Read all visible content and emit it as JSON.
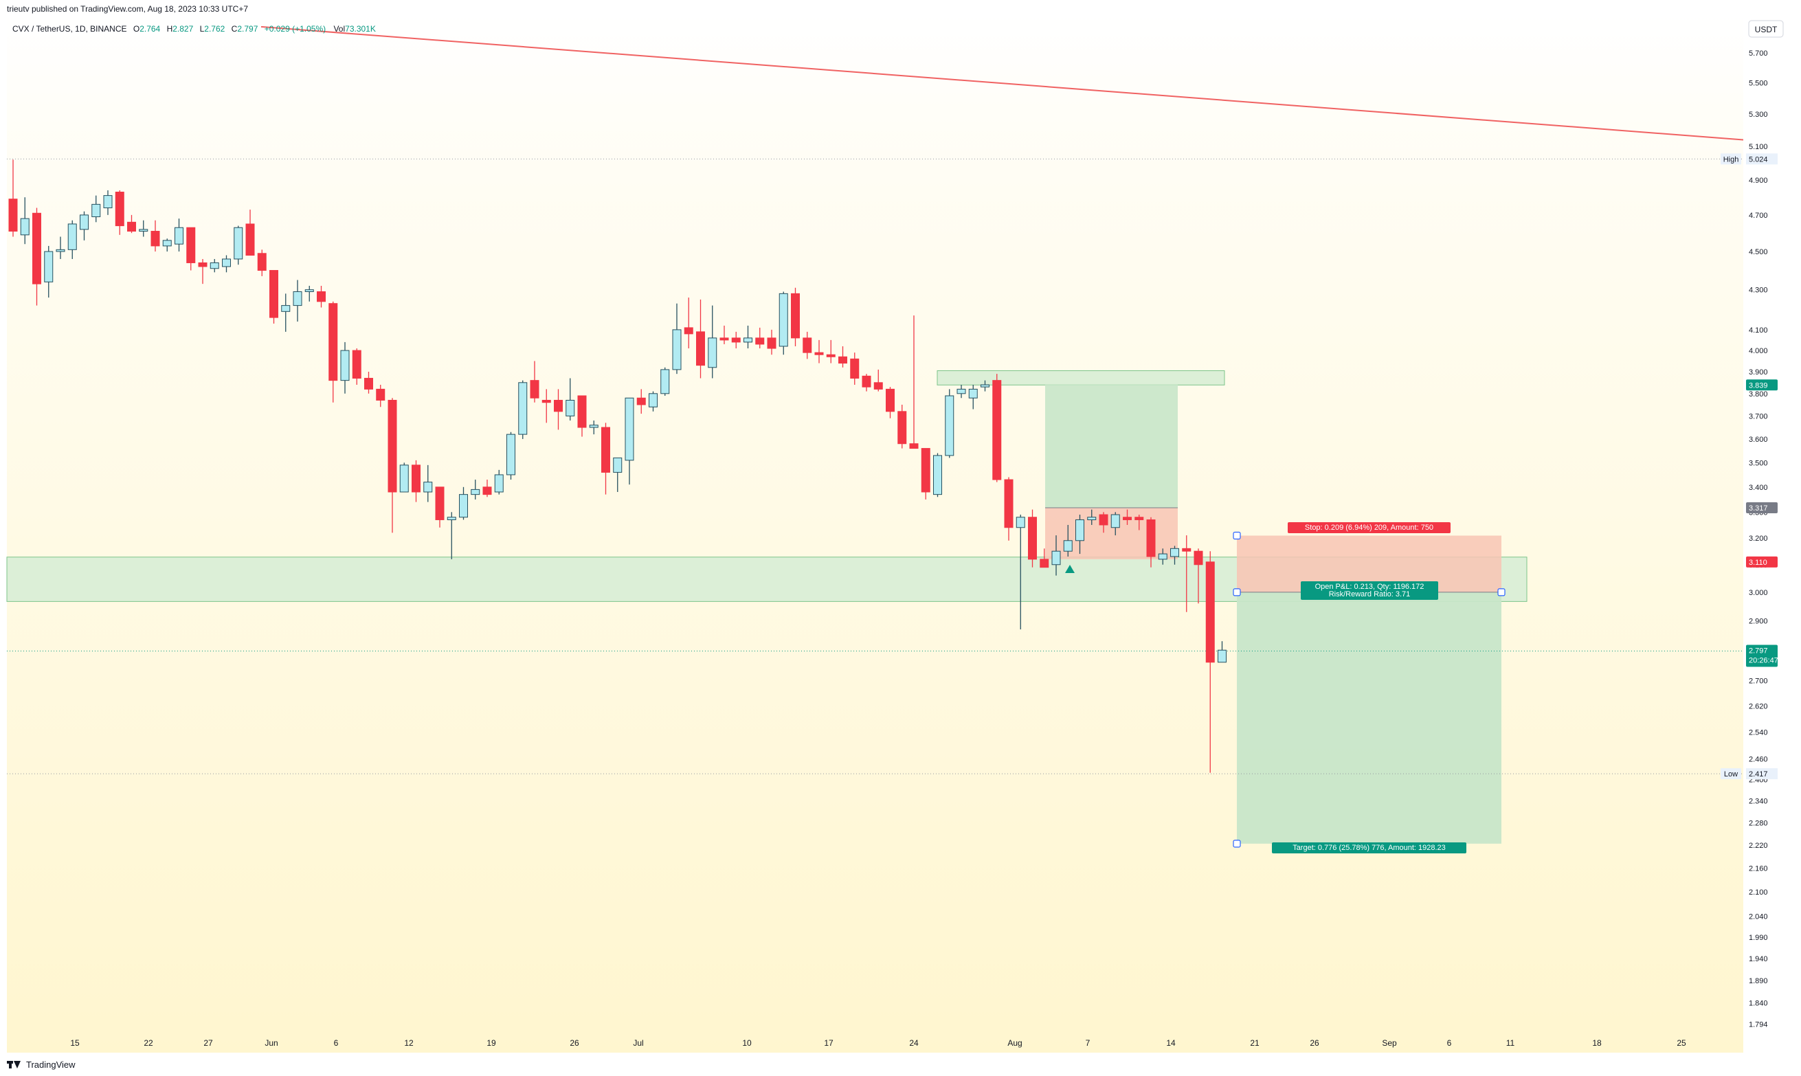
{
  "publish_info": "trieutv published on TradingView.com, Aug 18, 2023 10:33 UTC+7",
  "legend": {
    "symbol": "CVX / TetherUS, 1D, BINANCE",
    "open_label": "O",
    "open": "2.764",
    "high_label": "H",
    "high": "2.827",
    "low_label": "L",
    "low": "2.762",
    "close_label": "C",
    "close": "2.797",
    "change": "+0.029 (+1.05%)",
    "volume_label": "Vol",
    "volume": "73.301K"
  },
  "currency": "USDT",
  "footer_brand": "TradingView",
  "icons": [
    "tradingview-logo-icon",
    "long-position-arrow-icon"
  ],
  "colors": {
    "up_fill": "#b2ebf2",
    "up_border": "#26505f",
    "down": "#f23645",
    "green_zone": "#c8e6c9",
    "red_zone": "#f8c4b4",
    "teal": "#089981",
    "trendline": "#f06262"
  },
  "chart_data": {
    "type": "candlestick",
    "price_axis_ticks": [
      "5.700",
      "5.500",
      "5.300",
      "5.100",
      "4.900",
      "4.700",
      "4.500",
      "4.300",
      "4.100",
      "4.000",
      "3.900",
      "3.800",
      "3.700",
      "3.600",
      "3.500",
      "3.400",
      "3.300",
      "3.200",
      "3.100",
      "3.000",
      "2.900",
      "2.800",
      "2.700",
      "2.620",
      "2.540",
      "2.460",
      "2.400",
      "2.340",
      "2.280",
      "2.220",
      "2.160",
      "2.100",
      "2.040",
      "1.990",
      "1.940",
      "1.890",
      "1.840",
      "1.794"
    ],
    "time_axis_ticks": [
      "15",
      "22",
      "27",
      "Jun",
      "6",
      "12",
      "19",
      "26",
      "Jul",
      "10",
      "17",
      "24",
      "Aug",
      "7",
      "14",
      "21",
      "26",
      "Sep",
      "6",
      "11",
      "18",
      "25"
    ],
    "price_badges": [
      {
        "text": "5.024",
        "label": "High",
        "price": 5.024,
        "kind": "marker"
      },
      {
        "text": "3.839",
        "price": 3.839,
        "kind": "teal"
      },
      {
        "text": "3.317",
        "price": 3.317,
        "kind": "gray"
      },
      {
        "text": "3.110",
        "price": 3.11,
        "kind": "red"
      },
      {
        "text": "2.797",
        "sub": "20:26:47",
        "price": 2.797,
        "kind": "teal"
      },
      {
        "text": "2.417",
        "label": "Low",
        "price": 2.417,
        "kind": "marker"
      }
    ],
    "candles": [
      {
        "o": 4.79,
        "h": 5.02,
        "l": 4.58,
        "c": 4.61
      },
      {
        "o": 4.59,
        "h": 4.8,
        "l": 4.54,
        "c": 4.68
      },
      {
        "o": 4.71,
        "h": 4.74,
        "l": 4.22,
        "c": 4.33
      },
      {
        "o": 4.34,
        "h": 4.53,
        "l": 4.26,
        "c": 4.5
      },
      {
        "o": 4.5,
        "h": 4.58,
        "l": 4.46,
        "c": 4.51
      },
      {
        "o": 4.51,
        "h": 4.67,
        "l": 4.46,
        "c": 4.65
      },
      {
        "o": 4.62,
        "h": 4.72,
        "l": 4.56,
        "c": 4.7
      },
      {
        "o": 4.69,
        "h": 4.81,
        "l": 4.66,
        "c": 4.76
      },
      {
        "o": 4.74,
        "h": 4.84,
        "l": 4.7,
        "c": 4.81
      },
      {
        "o": 4.83,
        "h": 4.84,
        "l": 4.59,
        "c": 4.64
      },
      {
        "o": 4.66,
        "h": 4.7,
        "l": 4.6,
        "c": 4.61
      },
      {
        "o": 4.61,
        "h": 4.67,
        "l": 4.58,
        "c": 4.62
      },
      {
        "o": 4.61,
        "h": 4.67,
        "l": 4.5,
        "c": 4.53
      },
      {
        "o": 4.53,
        "h": 4.57,
        "l": 4.5,
        "c": 4.56
      },
      {
        "o": 4.54,
        "h": 4.68,
        "l": 4.5,
        "c": 4.63
      },
      {
        "o": 4.63,
        "h": 4.63,
        "l": 4.4,
        "c": 4.44
      },
      {
        "o": 4.44,
        "h": 4.46,
        "l": 4.33,
        "c": 4.42
      },
      {
        "o": 4.41,
        "h": 4.46,
        "l": 4.39,
        "c": 4.44
      },
      {
        "o": 4.42,
        "h": 4.48,
        "l": 4.39,
        "c": 4.46
      },
      {
        "o": 4.46,
        "h": 4.64,
        "l": 4.43,
        "c": 4.63
      },
      {
        "o": 4.65,
        "h": 4.73,
        "l": 4.49,
        "c": 4.48
      },
      {
        "o": 4.49,
        "h": 4.51,
        "l": 4.37,
        "c": 4.4
      },
      {
        "o": 4.4,
        "h": 4.4,
        "l": 4.13,
        "c": 4.16
      },
      {
        "o": 4.19,
        "h": 4.28,
        "l": 4.09,
        "c": 4.22
      },
      {
        "o": 4.22,
        "h": 4.35,
        "l": 4.14,
        "c": 4.29
      },
      {
        "o": 4.29,
        "h": 4.32,
        "l": 4.24,
        "c": 4.3
      },
      {
        "o": 4.29,
        "h": 4.32,
        "l": 4.21,
        "c": 4.24
      },
      {
        "o": 4.23,
        "h": 4.24,
        "l": 3.76,
        "c": 3.86
      },
      {
        "o": 3.86,
        "h": 4.04,
        "l": 3.8,
        "c": 4.0
      },
      {
        "o": 4.0,
        "h": 4.01,
        "l": 3.84,
        "c": 3.87
      },
      {
        "o": 3.87,
        "h": 3.9,
        "l": 3.8,
        "c": 3.82
      },
      {
        "o": 3.82,
        "h": 3.84,
        "l": 3.74,
        "c": 3.77
      },
      {
        "o": 3.77,
        "h": 3.78,
        "l": 3.22,
        "c": 3.38
      },
      {
        "o": 3.38,
        "h": 3.5,
        "l": 3.38,
        "c": 3.49
      },
      {
        "o": 3.49,
        "h": 3.51,
        "l": 3.34,
        "c": 3.38
      },
      {
        "o": 3.38,
        "h": 3.49,
        "l": 3.34,
        "c": 3.42
      },
      {
        "o": 3.4,
        "h": 3.4,
        "l": 3.24,
        "c": 3.27
      },
      {
        "o": 3.27,
        "h": 3.3,
        "l": 3.12,
        "c": 3.28
      },
      {
        "o": 3.28,
        "h": 3.4,
        "l": 3.27,
        "c": 3.37
      },
      {
        "o": 3.37,
        "h": 3.43,
        "l": 3.35,
        "c": 3.39
      },
      {
        "o": 3.4,
        "h": 3.43,
        "l": 3.36,
        "c": 3.37
      },
      {
        "o": 3.38,
        "h": 3.47,
        "l": 3.37,
        "c": 3.45
      },
      {
        "o": 3.45,
        "h": 3.63,
        "l": 3.43,
        "c": 3.62
      },
      {
        "o": 3.62,
        "h": 3.86,
        "l": 3.6,
        "c": 3.85
      },
      {
        "o": 3.86,
        "h": 3.95,
        "l": 3.76,
        "c": 3.78
      },
      {
        "o": 3.77,
        "h": 3.82,
        "l": 3.67,
        "c": 3.76
      },
      {
        "o": 3.77,
        "h": 3.82,
        "l": 3.64,
        "c": 3.72
      },
      {
        "o": 3.7,
        "h": 3.87,
        "l": 3.68,
        "c": 3.77
      },
      {
        "o": 3.79,
        "h": 3.79,
        "l": 3.61,
        "c": 3.65
      },
      {
        "o": 3.65,
        "h": 3.68,
        "l": 3.62,
        "c": 3.66
      },
      {
        "o": 3.65,
        "h": 3.67,
        "l": 3.37,
        "c": 3.46
      },
      {
        "o": 3.46,
        "h": 3.52,
        "l": 3.38,
        "c": 3.52
      },
      {
        "o": 3.51,
        "h": 3.78,
        "l": 3.41,
        "c": 3.78
      },
      {
        "o": 3.78,
        "h": 3.82,
        "l": 3.71,
        "c": 3.75
      },
      {
        "o": 3.74,
        "h": 3.81,
        "l": 3.72,
        "c": 3.8
      },
      {
        "o": 3.8,
        "h": 3.92,
        "l": 3.79,
        "c": 3.91
      },
      {
        "o": 3.91,
        "h": 4.23,
        "l": 3.89,
        "c": 4.1
      },
      {
        "o": 4.11,
        "h": 4.26,
        "l": 4.01,
        "c": 4.08
      },
      {
        "o": 4.09,
        "h": 4.25,
        "l": 3.87,
        "c": 3.93
      },
      {
        "o": 3.92,
        "h": 4.22,
        "l": 3.87,
        "c": 4.06
      },
      {
        "o": 4.06,
        "h": 4.12,
        "l": 4.03,
        "c": 4.05
      },
      {
        "o": 4.06,
        "h": 4.09,
        "l": 4.01,
        "c": 4.04
      },
      {
        "o": 4.04,
        "h": 4.12,
        "l": 4.01,
        "c": 4.06
      },
      {
        "o": 4.06,
        "h": 4.11,
        "l": 4.01,
        "c": 4.03
      },
      {
        "o": 4.06,
        "h": 4.1,
        "l": 3.98,
        "c": 4.01
      },
      {
        "o": 4.02,
        "h": 4.29,
        "l": 3.98,
        "c": 4.28
      },
      {
        "o": 4.28,
        "h": 4.31,
        "l": 4.02,
        "c": 4.06
      },
      {
        "o": 4.06,
        "h": 4.09,
        "l": 3.96,
        "c": 3.99
      },
      {
        "o": 3.99,
        "h": 4.05,
        "l": 3.94,
        "c": 3.98
      },
      {
        "o": 3.98,
        "h": 4.05,
        "l": 3.94,
        "c": 3.97
      },
      {
        "o": 3.97,
        "h": 4.02,
        "l": 3.92,
        "c": 3.94
      },
      {
        "o": 3.96,
        "h": 3.99,
        "l": 3.84,
        "c": 3.87
      },
      {
        "o": 3.88,
        "h": 3.89,
        "l": 3.81,
        "c": 3.83
      },
      {
        "o": 3.85,
        "h": 3.91,
        "l": 3.81,
        "c": 3.82
      },
      {
        "o": 3.82,
        "h": 3.83,
        "l": 3.69,
        "c": 3.72
      },
      {
        "o": 3.72,
        "h": 3.75,
        "l": 3.56,
        "c": 3.58
      },
      {
        "o": 3.58,
        "h": 4.17,
        "l": 3.56,
        "c": 3.56
      },
      {
        "o": 3.56,
        "h": 3.56,
        "l": 3.35,
        "c": 3.38
      },
      {
        "o": 3.37,
        "h": 3.54,
        "l": 3.36,
        "c": 3.53
      },
      {
        "o": 3.53,
        "h": 3.82,
        "l": 3.52,
        "c": 3.79
      },
      {
        "o": 3.8,
        "h": 3.84,
        "l": 3.78,
        "c": 3.82
      },
      {
        "o": 3.78,
        "h": 3.84,
        "l": 3.73,
        "c": 3.82
      },
      {
        "o": 3.83,
        "h": 3.86,
        "l": 3.81,
        "c": 3.84
      },
      {
        "o": 3.86,
        "h": 3.89,
        "l": 3.42,
        "c": 3.43
      },
      {
        "o": 3.43,
        "h": 3.44,
        "l": 3.19,
        "c": 3.24
      },
      {
        "o": 3.24,
        "h": 3.29,
        "l": 2.87,
        "c": 3.28
      },
      {
        "o": 3.28,
        "h": 3.31,
        "l": 3.09,
        "c": 3.12
      },
      {
        "o": 3.12,
        "h": 3.16,
        "l": 3.09,
        "c": 3.09
      },
      {
        "o": 3.1,
        "h": 3.21,
        "l": 3.06,
        "c": 3.15
      },
      {
        "o": 3.15,
        "h": 3.25,
        "l": 3.13,
        "c": 3.19
      },
      {
        "o": 3.19,
        "h": 3.29,
        "l": 3.14,
        "c": 3.27
      },
      {
        "o": 3.27,
        "h": 3.31,
        "l": 3.25,
        "c": 3.28
      },
      {
        "o": 3.29,
        "h": 3.3,
        "l": 3.22,
        "c": 3.25
      },
      {
        "o": 3.24,
        "h": 3.3,
        "l": 3.21,
        "c": 3.29
      },
      {
        "o": 3.28,
        "h": 3.31,
        "l": 3.25,
        "c": 3.27
      },
      {
        "o": 3.28,
        "h": 3.29,
        "l": 3.23,
        "c": 3.27
      },
      {
        "o": 3.27,
        "h": 3.28,
        "l": 3.09,
        "c": 3.13
      },
      {
        "o": 3.12,
        "h": 3.16,
        "l": 3.1,
        "c": 3.14
      },
      {
        "o": 3.13,
        "h": 3.17,
        "l": 3.1,
        "c": 3.16
      },
      {
        "o": 3.16,
        "h": 3.21,
        "l": 2.93,
        "c": 3.15
      },
      {
        "o": 3.15,
        "h": 3.16,
        "l": 2.96,
        "c": 3.1
      },
      {
        "o": 3.11,
        "h": 3.15,
        "l": 2.42,
        "c": 2.76
      },
      {
        "o": 2.76,
        "h": 2.83,
        "l": 2.76,
        "c": 2.8
      }
    ],
    "annotations": {
      "stop_label": "Stop: 0.209 (6.94%) 209, Amount: 750",
      "pnl_label": "Open P&L: 0.213, Qty: 1196.172",
      "rr_label": "Risk/Reward Ratio: 3.71",
      "target_label": "Target: 0.776 (25.78%) 776, Amount: 1928.23"
    },
    "zones": [
      {
        "name": "support-zone",
        "from_price": 2.967,
        "to_price": 3.128
      },
      {
        "name": "resistance-zone",
        "from_price": 3.839,
        "to_price": 3.905
      }
    ],
    "position": {
      "entry": 3.0,
      "stop": 3.209,
      "target": 2.224
    },
    "trendline": [
      {
        "price": 5.88
      },
      {
        "price": 5.14
      }
    ]
  }
}
